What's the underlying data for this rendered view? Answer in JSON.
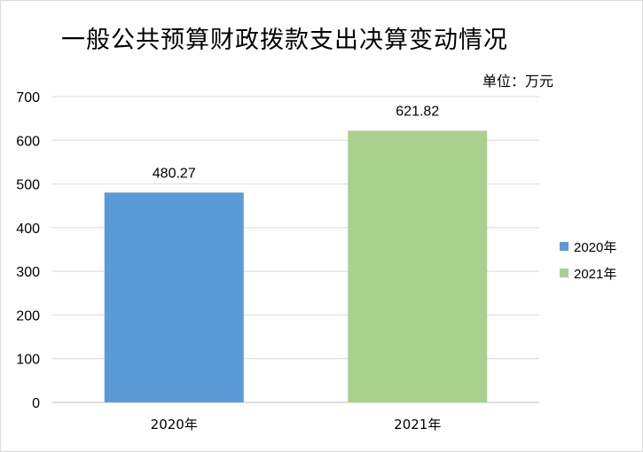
{
  "chart_data": {
    "type": "bar",
    "title": "一般公共预算财政拨款支出决算变动情况",
    "unit_label": "单位：万元",
    "categories": [
      "2020年",
      "2021年"
    ],
    "values": [
      480.27,
      621.82
    ],
    "value_labels": [
      "480.27",
      "621.82"
    ],
    "ylim": [
      0,
      700
    ],
    "yticks": [
      0,
      100,
      200,
      300,
      400,
      500,
      600,
      700
    ],
    "grid": true,
    "legend_position": "right",
    "colors": [
      "#5b9bd5",
      "#a9d18e"
    ],
    "legend": [
      "2020年",
      "2021年"
    ]
  }
}
